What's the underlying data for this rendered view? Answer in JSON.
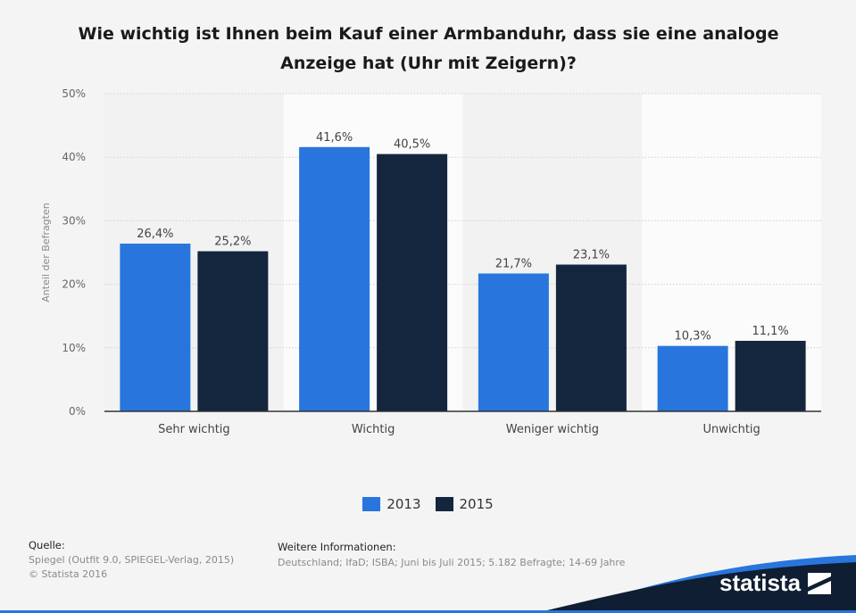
{
  "chart_data": {
    "type": "bar",
    "title": "Wie wichtig ist Ihnen beim Kauf einer Armbanduhr, dass sie eine analoge Anzeige hat (Uhr mit Zeigern)?",
    "xlabel": "",
    "ylabel": "Anteil der Befragten",
    "ylim": [
      0,
      50
    ],
    "yticks": [
      0,
      10,
      20,
      30,
      40,
      50
    ],
    "ytick_labels": [
      "0%",
      "10%",
      "20%",
      "30%",
      "40%",
      "50%"
    ],
    "grid": true,
    "legend_position": "bottom",
    "categories": [
      "Sehr wichtig",
      "Wichtig",
      "Weniger wichtig",
      "Unwichtig"
    ],
    "series": [
      {
        "name": "2013",
        "color": "#2876dd",
        "values": [
          26.4,
          41.6,
          21.7,
          10.3
        ],
        "labels": [
          "26,4%",
          "41,6%",
          "21,7%",
          "10,3%"
        ]
      },
      {
        "name": "2015",
        "color": "#13263e",
        "values": [
          25.2,
          40.5,
          23.1,
          11.1
        ],
        "labels": [
          "25,2%",
          "40,5%",
          "23,1%",
          "11,1%"
        ]
      }
    ]
  },
  "footer": {
    "source_label": "Quelle:",
    "source_text": "Spiegel (Outfit 9.0, SPIEGEL-Verlag, 2015)",
    "copyright": "© Statista 2016",
    "info_label": "Weitere Informationen:",
    "info_text": "Deutschland; IfaD; ISBA; Juni bis Juli 2015; 5.182 Befragte; 14-69 Jahre"
  },
  "brand": {
    "name": "statista"
  },
  "colors": {
    "background": "#f4f4f4",
    "brand_dark": "#0f1e33",
    "brand_accent": "#2876dd"
  }
}
